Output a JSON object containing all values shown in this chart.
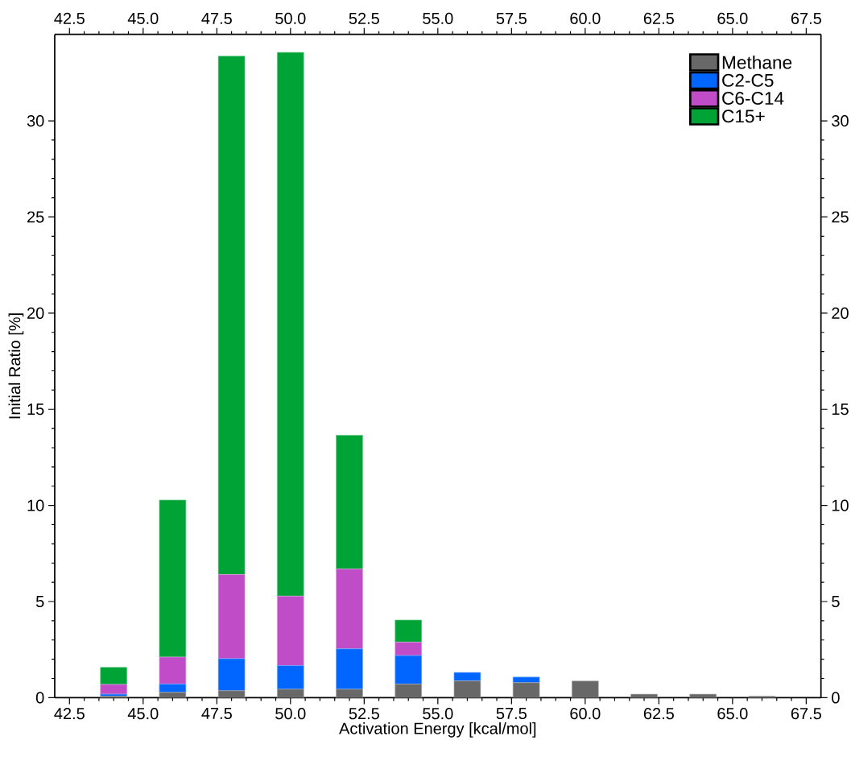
{
  "chart_data": {
    "type": "bar",
    "stacked": true,
    "xlabel": "Activation Energy  [kcal/mol]",
    "ylabel": "Initial Ratio  [%]",
    "x": [
      44,
      46,
      48,
      50,
      52,
      54,
      56,
      58,
      60,
      62,
      64,
      66
    ],
    "series": [
      {
        "name": "Methane",
        "color": "#686868",
        "values": [
          0.08,
          0.28,
          0.36,
          0.44,
          0.44,
          0.71,
          0.87,
          0.78,
          0.87,
          0.18,
          0.18,
          0.08
        ]
      },
      {
        "name": "C2-C5",
        "color": "#0066ff",
        "values": [
          0.1,
          0.43,
          1.67,
          1.23,
          2.1,
          1.48,
          0.44,
          0.29,
          0,
          0,
          0,
          0
        ]
      },
      {
        "name": "C6-C14",
        "color": "#c04cc8",
        "values": [
          0.51,
          1.4,
          4.37,
          3.61,
          4.15,
          0.7,
          0,
          0,
          0,
          0,
          0,
          0
        ]
      },
      {
        "name": "C15+",
        "color": "#00a335",
        "values": [
          0.89,
          8.17,
          26.97,
          28.28,
          6.96,
          1.15,
          0,
          0,
          0,
          0,
          0,
          0
        ]
      }
    ],
    "xlim": [
      42,
      68
    ],
    "xticks": [
      42.5,
      {
        "value": 45,
        "label": "45.0"
      },
      47.5,
      {
        "value": 50,
        "label": "50.0"
      },
      52.5,
      {
        "value": 55,
        "label": "55.0"
      },
      57.5,
      {
        "value": 60,
        "label": "60.0"
      },
      62.5,
      {
        "value": 65,
        "label": "65.0"
      },
      67.5
    ],
    "x2lim": [
      42,
      68
    ],
    "x2ticks": [
      42.5,
      {
        "value": 45,
        "label": "45.0"
      },
      47.5,
      {
        "value": 50,
        "label": "50.0"
      },
      52.5,
      {
        "value": 55,
        "label": "55.0"
      },
      57.5,
      {
        "value": 60,
        "label": "60.0"
      },
      62.5,
      {
        "value": 65,
        "label": "65.0"
      },
      67.5
    ],
    "ylim": [
      0,
      34.5
    ],
    "yticks": [
      0,
      5,
      10,
      15,
      20,
      25,
      30
    ],
    "y2lim": [
      0,
      34.5
    ],
    "y2ticks": [
      0,
      5,
      10,
      15,
      20,
      25,
      30
    ],
    "legend": "top right"
  }
}
